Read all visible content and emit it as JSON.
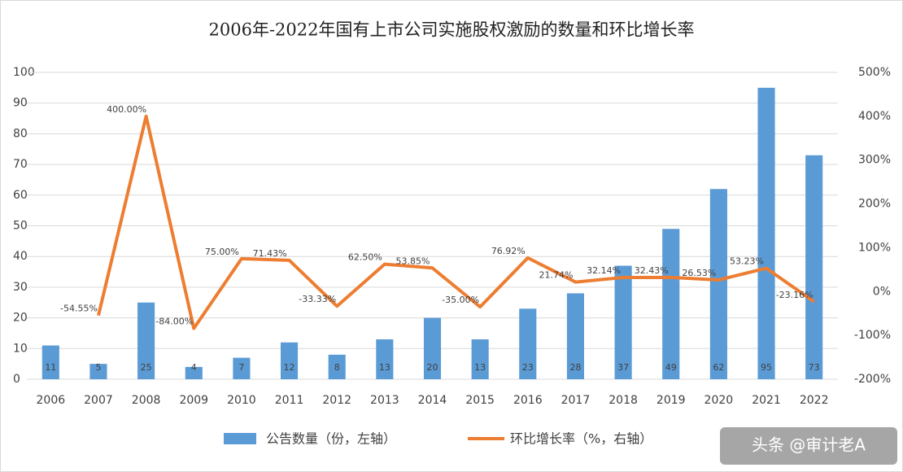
{
  "chart_data": {
    "type": "combo",
    "title": "2006年-2022年国有上市公司实施股权激励的数量和环比增长率",
    "categories": [
      "2006",
      "2007",
      "2008",
      "2009",
      "2010",
      "2011",
      "2012",
      "2013",
      "2014",
      "2015",
      "2016",
      "2017",
      "2018",
      "2019",
      "2020",
      "2021",
      "2022"
    ],
    "series": [
      {
        "name": "公告数量（份，左轴）",
        "type": "bar",
        "color": "#5b9bd5",
        "values": [
          11,
          5,
          25,
          4,
          7,
          12,
          8,
          13,
          20,
          13,
          23,
          28,
          37,
          49,
          62,
          95,
          73
        ]
      },
      {
        "name": "环比增长率（%，右轴）",
        "type": "line",
        "axis": "y2",
        "color": "#ed7d31",
        "values": [
          null,
          -54.55,
          400.0,
          -84.0,
          75.0,
          71.43,
          -33.33,
          62.5,
          53.85,
          -35.0,
          76.92,
          21.74,
          32.14,
          32.43,
          26.53,
          53.23,
          -23.16
        ],
        "value_labels": [
          null,
          "-54.55%",
          "400.00%",
          "-84.00%",
          "75.00%",
          "71.43%",
          "-33.33%",
          "62.50%",
          "53.85%",
          "-35.00%",
          "76.92%",
          "21.74%",
          "32.14%",
          "32.43%",
          "26.53%",
          "53.23%",
          "-23.16%"
        ]
      }
    ],
    "ylim": [
      0,
      100
    ],
    "yticks": [
      0,
      10,
      20,
      30,
      40,
      50,
      60,
      70,
      80,
      90,
      100
    ],
    "y2lim": [
      -200,
      500
    ],
    "y2ticks": [
      {
        "value": -200,
        "label": "-200%"
      },
      {
        "value": -100,
        "label": "-100%"
      },
      {
        "value": 0,
        "label": "0%"
      },
      {
        "value": 100,
        "label": "100%"
      },
      {
        "value": 200,
        "label": "200%"
      },
      {
        "value": 300,
        "label": "300%"
      },
      {
        "value": 400,
        "label": "400%"
      },
      {
        "value": 500,
        "label": "500%"
      }
    ],
    "grid": true,
    "legend": "bottom"
  },
  "watermark": "头条 @审计老A"
}
